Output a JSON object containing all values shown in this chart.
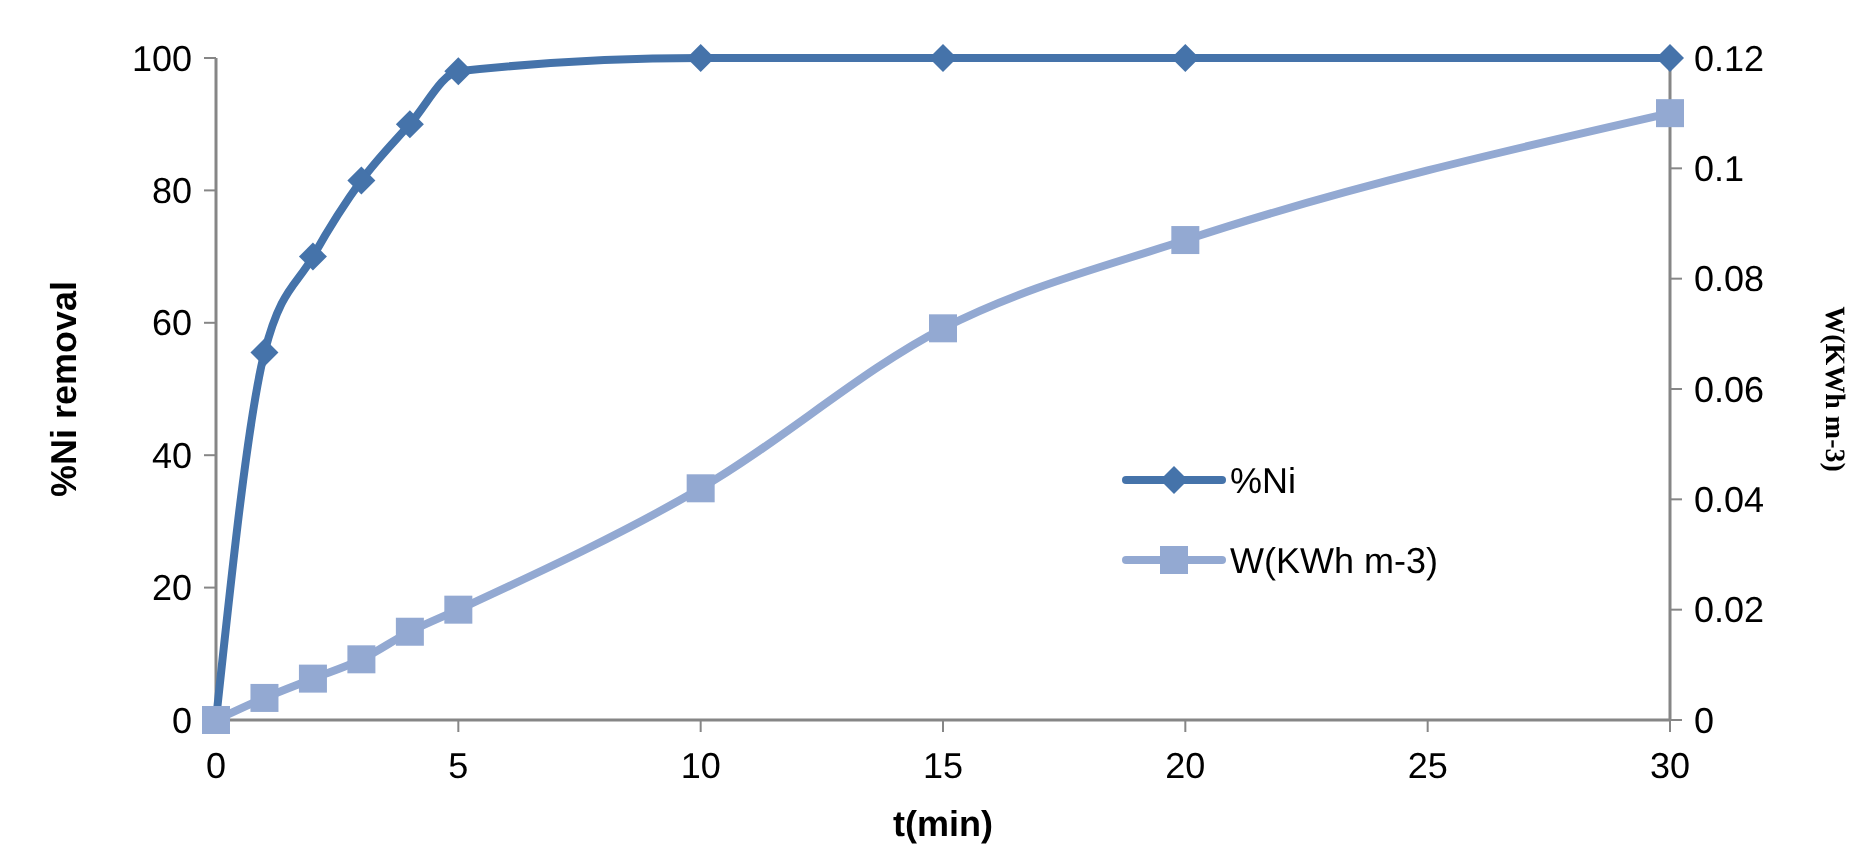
{
  "chart_data": {
    "type": "line",
    "xlabel": "t(min)",
    "ylabel": "%Ni removal",
    "y2label": "W(KWh m-3)",
    "x": [
      0,
      1,
      2,
      3,
      4,
      5,
      10,
      15,
      20,
      30
    ],
    "series": [
      {
        "name": "%Ni",
        "color": "#4573aa",
        "marker": "diamond",
        "values": [
          0,
          55.5,
          70,
          81.5,
          90,
          98,
          100,
          100,
          100,
          100
        ]
      },
      {
        "name": "W(KWh m-3)",
        "color": "#93a9d2",
        "marker": "square",
        "axis": "y2",
        "values": [
          0,
          0.004,
          0.0075,
          0.011,
          0.016,
          0.02,
          0.042,
          0.071,
          0.087,
          0.11
        ]
      }
    ],
    "xlim": [
      0,
      30
    ],
    "xticks": [
      0,
      5,
      10,
      15,
      20,
      25,
      30
    ],
    "ylim": [
      0,
      100
    ],
    "yticks": [
      0,
      20,
      40,
      60,
      80,
      100
    ],
    "y2lim": [
      0,
      0.12
    ],
    "y2ticks": [
      0,
      0.02,
      0.04,
      0.06,
      0.08,
      0.1,
      0.12
    ],
    "grid": false,
    "legend": "right",
    "line_style": "solid"
  }
}
